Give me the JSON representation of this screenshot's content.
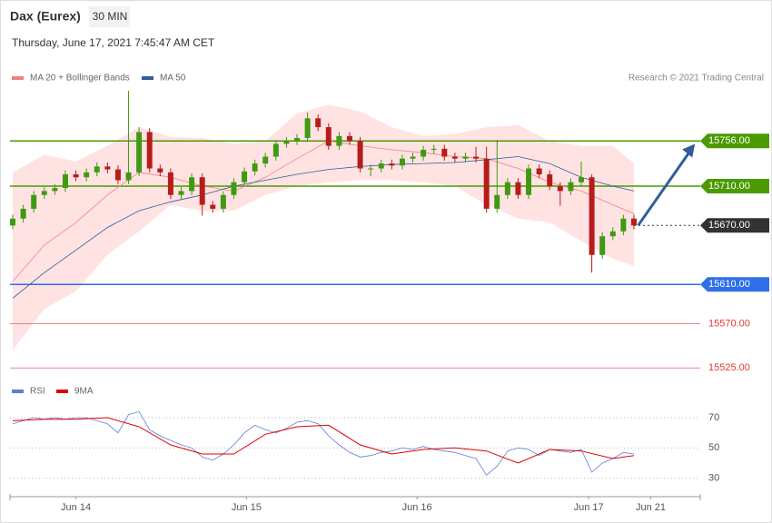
{
  "chart_data": [
    {
      "type": "candlestick",
      "title": "Dax (Eurex)",
      "timeframe": "30 MIN",
      "subtitle": "Thursday, June 17, 2021 7:45:47 AM CET",
      "attribution": "Research © 2021 Trading Central",
      "up_color": "#3f9a12",
      "down_color": "#b71c1c",
      "band_color": "#ffe3e3",
      "ylim": [
        15516,
        15807
      ],
      "xlim": [
        -0.26,
        65.3
      ],
      "xticks": [
        {
          "value": 6,
          "label": "Jun 14"
        },
        {
          "value": 22.2,
          "label": "Jun 15"
        },
        {
          "value": 38.4,
          "label": "Jun 16"
        },
        {
          "value": 54.7,
          "label": "Jun 17"
        },
        {
          "value": 60.6,
          "label": "Jun 21"
        }
      ],
      "x": [
        0,
        1,
        2,
        3,
        4,
        5,
        6,
        7,
        8,
        9,
        10,
        11,
        12,
        13,
        14,
        15,
        16,
        17,
        18,
        19,
        20,
        21,
        22,
        23,
        24,
        25,
        26,
        27,
        28,
        29,
        30,
        31,
        32,
        33,
        34,
        35,
        36,
        37,
        38,
        39,
        40,
        41,
        42,
        43,
        44,
        45,
        46,
        47,
        48,
        49,
        50,
        51,
        52,
        53,
        54,
        55,
        56,
        57,
        58,
        59
      ],
      "open": [
        15670,
        15677,
        15687,
        15701,
        15705,
        15708,
        15722,
        15719,
        15724,
        15730,
        15727,
        15716,
        15724,
        15765,
        15728,
        15724,
        15701,
        15705,
        15719,
        15691,
        15687,
        15701,
        15714,
        15725,
        15733,
        15740,
        15753,
        15756,
        15759,
        15779,
        15770,
        15751,
        15761,
        15756,
        15728,
        15728,
        15733,
        15731,
        15738,
        15740,
        15747,
        15748,
        15740,
        15738,
        15740,
        15738,
        15687,
        15701,
        15714,
        15701,
        15728,
        15722,
        15710,
        15705,
        15714,
        15719,
        15640,
        15659,
        15664,
        15677
      ],
      "high": [
        15681,
        15691,
        15705,
        15709,
        15712,
        15726,
        15726,
        15728,
        15734,
        15734,
        15731,
        15807,
        15770,
        15769,
        15732,
        15728,
        15709,
        15723,
        15723,
        15695,
        15705,
        15718,
        15729,
        15737,
        15744,
        15757,
        15760,
        15763,
        15785,
        15783,
        15774,
        15765,
        15765,
        15760,
        15732,
        15737,
        15737,
        15742,
        15744,
        15751,
        15752,
        15752,
        15744,
        15744,
        15750,
        15750,
        15757,
        15718,
        15718,
        15732,
        15732,
        15726,
        15714,
        15718,
        15735,
        15722,
        15663,
        15668,
        15681,
        15681
      ],
      "low": [
        15666,
        15673,
        15683,
        15697,
        15701,
        15704,
        15715,
        15715,
        15720,
        15723,
        15712,
        15712,
        15720,
        15724,
        15720,
        15697,
        15697,
        15701,
        15680,
        15683,
        15683,
        15697,
        15710,
        15721,
        15729,
        15736,
        15749,
        15752,
        15755,
        15766,
        15747,
        15747,
        15752,
        15724,
        15720,
        15724,
        15727,
        15727,
        15734,
        15736,
        15743,
        15736,
        15734,
        15734,
        15734,
        15683,
        15683,
        15697,
        15697,
        15697,
        15718,
        15706,
        15690,
        15701,
        15710,
        15622,
        15636,
        15655,
        15660,
        15666
      ],
      "close": [
        15677,
        15687,
        15701,
        15705,
        15708,
        15722,
        15719,
        15724,
        15730,
        15727,
        15716,
        15724,
        15765,
        15728,
        15724,
        15701,
        15705,
        15719,
        15691,
        15687,
        15701,
        15714,
        15725,
        15733,
        15740,
        15753,
        15756,
        15759,
        15779,
        15770,
        15751,
        15761,
        15756,
        15728,
        15728,
        15733,
        15731,
        15738,
        15740,
        15747,
        15748,
        15740,
        15738,
        15740,
        15738,
        15687,
        15701,
        15714,
        15701,
        15728,
        15722,
        15710,
        15705,
        15714,
        15719,
        15640,
        15659,
        15664,
        15677,
        15670
      ],
      "series": [
        {
          "name": "MA 20 + Bollinger Bands",
          "color": "#f47f7f",
          "x": [
            0,
            3,
            6,
            9,
            12,
            15,
            18,
            21,
            24,
            27,
            30,
            33,
            36,
            39,
            42,
            45,
            48,
            51,
            54,
            57,
            59
          ],
          "values": [
            15613,
            15650,
            15673,
            15701,
            15724,
            15719,
            15710,
            15705,
            15719,
            15738,
            15756,
            15751,
            15747,
            15744,
            15740,
            15738,
            15728,
            15714,
            15705,
            15691,
            15682
          ],
          "upper": [
            15724,
            15742,
            15735,
            15751,
            15770,
            15760,
            15759,
            15753,
            15756,
            15784,
            15793,
            15786,
            15770,
            15761,
            15763,
            15770,
            15772,
            15756,
            15751,
            15751,
            15733
          ],
          "lower": [
            15543,
            15585,
            15603,
            15640,
            15664,
            15691,
            15685,
            15685,
            15701,
            15710,
            15714,
            15716,
            15716,
            15714,
            15710,
            15691,
            15677,
            15673,
            15654,
            15636,
            15629
          ]
        },
        {
          "name": "MA 50",
          "color": "#2f5d9a",
          "x": [
            0,
            3,
            6,
            9,
            12,
            15,
            18,
            21,
            24,
            27,
            30,
            33,
            36,
            39,
            42,
            45,
            48,
            51,
            54,
            57,
            59
          ],
          "values": [
            15596,
            15622,
            15645,
            15668,
            15685,
            15694,
            15701,
            15710,
            15716,
            15722,
            15727,
            15730,
            15732,
            15733,
            15734,
            15737,
            15740,
            15733,
            15719,
            15710,
            15705
          ]
        }
      ],
      "levels": [
        {
          "value": 15756,
          "label": "15756.00",
          "color": "#4a9a00",
          "tag": true
        },
        {
          "value": 15710,
          "label": "15710.00",
          "color": "#4a9a00",
          "tag": true
        },
        {
          "value": 15670,
          "label": "15670.00",
          "color": "#333333",
          "tag": true,
          "dotted": true
        },
        {
          "value": 15610,
          "label": "15610.00",
          "color": "#2f6fe8",
          "tag": true
        },
        {
          "value": 15570,
          "label": "15570.00",
          "color": "#e53935",
          "tag": false
        },
        {
          "value": 15525,
          "label": "15525.00",
          "color": "#e53935",
          "tag": false
        }
      ],
      "arrow": {
        "x": [
          59.4,
          64.8
        ],
        "y": [
          15670,
          15753
        ],
        "color": "#2f5d9a"
      }
    },
    {
      "type": "line",
      "ylim": [
        19,
        82
      ],
      "yticks": [
        70,
        50,
        30
      ],
      "xlim": [
        -0.26,
        65.3
      ],
      "series": [
        {
          "name": "RSI",
          "color": "#5b7fd6",
          "x": [
            0,
            1,
            2,
            3,
            4,
            5,
            6,
            7,
            8,
            9,
            10,
            11,
            12,
            13,
            14,
            15,
            16,
            17,
            18,
            19,
            20,
            21,
            22,
            23,
            24,
            25,
            26,
            27,
            28,
            29,
            30,
            31,
            32,
            33,
            34,
            35,
            36,
            37,
            38,
            39,
            40,
            41,
            42,
            43,
            44,
            45,
            46,
            47,
            48,
            49,
            50,
            51,
            52,
            53,
            54,
            55,
            56,
            57,
            58,
            59
          ],
          "values": [
            66,
            68,
            70,
            69,
            70,
            69,
            70,
            70,
            68,
            66,
            60,
            72,
            74,
            62,
            58,
            55,
            52,
            50,
            44,
            42,
            46,
            52,
            60,
            65,
            62,
            60,
            63,
            67,
            68,
            66,
            58,
            52,
            47,
            44,
            45,
            47,
            48,
            50,
            49,
            51,
            49,
            48,
            47,
            45,
            43,
            32,
            38,
            48,
            50,
            49,
            45,
            49,
            48,
            47,
            49,
            34,
            40,
            43,
            47,
            46
          ]
        },
        {
          "name": "9MA",
          "color": "#e00000",
          "x": [
            0,
            3,
            6,
            9,
            12,
            15,
            18,
            21,
            24,
            27,
            30,
            33,
            36,
            39,
            42,
            45,
            48,
            51,
            54,
            57,
            59
          ],
          "values": [
            68,
            69,
            69,
            70,
            64,
            52,
            46,
            46,
            59,
            64,
            65,
            52,
            46,
            49,
            50,
            48,
            40,
            49,
            48,
            43,
            45
          ]
        }
      ]
    }
  ]
}
